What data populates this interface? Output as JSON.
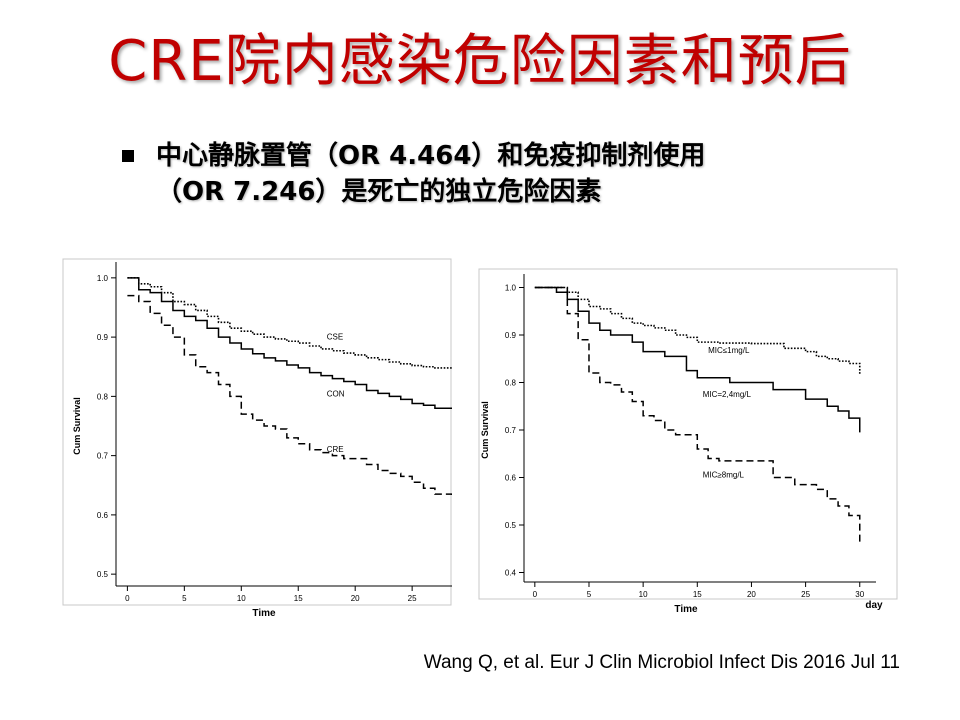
{
  "slide": {
    "title": "CRE院内感染危险因素和预后",
    "bullet_line1": "中心静脉置管（OR 4.464）和免疫抑制剂使用",
    "bullet_line2": "（OR 7.246）是死亡的独立危险因素",
    "citation": "Wang Q, et al. Eur J Clin Microbiol Infect Dis 2016 Jul 11"
  },
  "chart_data": [
    {
      "type": "line",
      "step": true,
      "xlabel": "Time",
      "ylabel": "Cum Survival",
      "xlim": [
        -1,
        28.5
      ],
      "ylim": [
        0.48,
        1.02
      ],
      "xticks": [
        0,
        5,
        10,
        15,
        20,
        25
      ],
      "yticks": [
        0.5,
        0.6,
        0.7,
        0.8,
        0.9,
        1.0
      ],
      "grid": false,
      "series": [
        {
          "name": "CSE",
          "style": "dotted",
          "label_at": [
            17.5,
            0.896
          ],
          "points": [
            [
              0,
              1.0
            ],
            [
              1,
              0.99
            ],
            [
              2,
              0.985
            ],
            [
              3,
              0.975
            ],
            [
              4,
              0.96
            ],
            [
              5,
              0.955
            ],
            [
              6,
              0.945
            ],
            [
              7,
              0.935
            ],
            [
              8,
              0.925
            ],
            [
              9,
              0.915
            ],
            [
              10,
              0.91
            ],
            [
              11,
              0.905
            ],
            [
              12,
              0.9
            ],
            [
              13,
              0.897
            ],
            [
              14,
              0.893
            ],
            [
              15,
              0.89
            ],
            [
              16,
              0.885
            ],
            [
              17,
              0.88
            ],
            [
              18,
              0.877
            ],
            [
              19,
              0.873
            ],
            [
              20,
              0.87
            ],
            [
              21,
              0.865
            ],
            [
              22,
              0.862
            ],
            [
              23,
              0.858
            ],
            [
              24,
              0.855
            ],
            [
              25,
              0.852
            ],
            [
              26,
              0.85
            ],
            [
              27,
              0.848
            ],
            [
              28.5,
              0.848
            ]
          ]
        },
        {
          "name": "CON",
          "style": "solid",
          "label_at": [
            17.5,
            0.8
          ],
          "points": [
            [
              0,
              1.0
            ],
            [
              1,
              0.98
            ],
            [
              2,
              0.975
            ],
            [
              3,
              0.96
            ],
            [
              4,
              0.945
            ],
            [
              5,
              0.935
            ],
            [
              6,
              0.928
            ],
            [
              7,
              0.915
            ],
            [
              8,
              0.9
            ],
            [
              9,
              0.89
            ],
            [
              10,
              0.88
            ],
            [
              11,
              0.872
            ],
            [
              12,
              0.865
            ],
            [
              13,
              0.86
            ],
            [
              14,
              0.853
            ],
            [
              15,
              0.848
            ],
            [
              16,
              0.84
            ],
            [
              17,
              0.835
            ],
            [
              18,
              0.83
            ],
            [
              19,
              0.825
            ],
            [
              20,
              0.82
            ],
            [
              21,
              0.81
            ],
            [
              22,
              0.805
            ],
            [
              23,
              0.8
            ],
            [
              24,
              0.795
            ],
            [
              25,
              0.788
            ],
            [
              26,
              0.785
            ],
            [
              27,
              0.78
            ],
            [
              28.5,
              0.78
            ]
          ]
        },
        {
          "name": "CRE",
          "style": "dashed",
          "label_at": [
            17.5,
            0.706
          ],
          "points": [
            [
              0,
              0.97
            ],
            [
              1,
              0.96
            ],
            [
              2,
              0.94
            ],
            [
              3,
              0.92
            ],
            [
              4,
              0.9
            ],
            [
              5,
              0.87
            ],
            [
              6,
              0.85
            ],
            [
              7,
              0.84
            ],
            [
              8,
              0.82
            ],
            [
              9,
              0.8
            ],
            [
              10,
              0.77
            ],
            [
              11,
              0.76
            ],
            [
              12,
              0.75
            ],
            [
              13,
              0.745
            ],
            [
              14,
              0.73
            ],
            [
              15,
              0.72
            ],
            [
              16,
              0.71
            ],
            [
              17,
              0.705
            ],
            [
              18,
              0.7
            ],
            [
              19,
              0.695
            ],
            [
              20,
              0.695
            ],
            [
              21,
              0.685
            ],
            [
              22,
              0.675
            ],
            [
              23,
              0.67
            ],
            [
              24,
              0.665
            ],
            [
              25,
              0.655
            ],
            [
              26,
              0.645
            ],
            [
              27,
              0.635
            ],
            [
              28.5,
              0.628
            ]
          ]
        }
      ]
    },
    {
      "type": "line",
      "step": true,
      "xlabel": "Time",
      "ylabel": "Cum Survival",
      "x_unit_label": "day",
      "xlim": [
        -1,
        31.5
      ],
      "ylim": [
        0.38,
        1.02
      ],
      "xticks": [
        0,
        5,
        10,
        15,
        20,
        25,
        30
      ],
      "yticks": [
        0.4,
        0.5,
        0.6,
        0.7,
        0.8,
        0.9,
        1.0
      ],
      "grid": false,
      "series": [
        {
          "name": "MIC≤1mg/L",
          "style": "dotted",
          "label_at": [
            16,
            0.862
          ],
          "points": [
            [
              0,
              1.0
            ],
            [
              2,
              1.0
            ],
            [
              3,
              0.99
            ],
            [
              4,
              0.975
            ],
            [
              5,
              0.96
            ],
            [
              6,
              0.955
            ],
            [
              7,
              0.945
            ],
            [
              8,
              0.935
            ],
            [
              9,
              0.925
            ],
            [
              10,
              0.92
            ],
            [
              11,
              0.915
            ],
            [
              12,
              0.91
            ],
            [
              13,
              0.9
            ],
            [
              14,
              0.895
            ],
            [
              15,
              0.885
            ],
            [
              17,
              0.883
            ],
            [
              20,
              0.882
            ],
            [
              23,
              0.872
            ],
            [
              25,
              0.865
            ],
            [
              26,
              0.855
            ],
            [
              27,
              0.85
            ],
            [
              28,
              0.845
            ],
            [
              29,
              0.84
            ],
            [
              30,
              0.835
            ],
            [
              30,
              0.815
            ]
          ]
        },
        {
          "name": "MIC=2,4mg/L",
          "style": "solid",
          "label_at": [
            15.5,
            0.77
          ],
          "points": [
            [
              0,
              1.0
            ],
            [
              2,
              0.99
            ],
            [
              3,
              0.975
            ],
            [
              4,
              0.95
            ],
            [
              5,
              0.925
            ],
            [
              6,
              0.91
            ],
            [
              7,
              0.9
            ],
            [
              9,
              0.885
            ],
            [
              10,
              0.865
            ],
            [
              12,
              0.855
            ],
            [
              14,
              0.825
            ],
            [
              15,
              0.81
            ],
            [
              18,
              0.8
            ],
            [
              21,
              0.8
            ],
            [
              22,
              0.785
            ],
            [
              25,
              0.765
            ],
            [
              27,
              0.75
            ],
            [
              28,
              0.74
            ],
            [
              29,
              0.725
            ],
            [
              30,
              0.72
            ],
            [
              30,
              0.695
            ]
          ]
        },
        {
          "name": "MIC≥8mg/L",
          "style": "dashed",
          "label_at": [
            15.5,
            0.6
          ],
          "points": [
            [
              0,
              1.0
            ],
            [
              2,
              1.0
            ],
            [
              3,
              0.945
            ],
            [
              4,
              0.89
            ],
            [
              5,
              0.82
            ],
            [
              6,
              0.8
            ],
            [
              7,
              0.795
            ],
            [
              8,
              0.78
            ],
            [
              9,
              0.76
            ],
            [
              10,
              0.73
            ],
            [
              11,
              0.72
            ],
            [
              12,
              0.7
            ],
            [
              13,
              0.69
            ],
            [
              15,
              0.66
            ],
            [
              16,
              0.64
            ],
            [
              17,
              0.635
            ],
            [
              19,
              0.635
            ],
            [
              22,
              0.6
            ],
            [
              24,
              0.585
            ],
            [
              26,
              0.575
            ],
            [
              27,
              0.555
            ],
            [
              28,
              0.54
            ],
            [
              29,
              0.52
            ],
            [
              30,
              0.51
            ],
            [
              30,
              0.465
            ]
          ]
        }
      ]
    }
  ]
}
